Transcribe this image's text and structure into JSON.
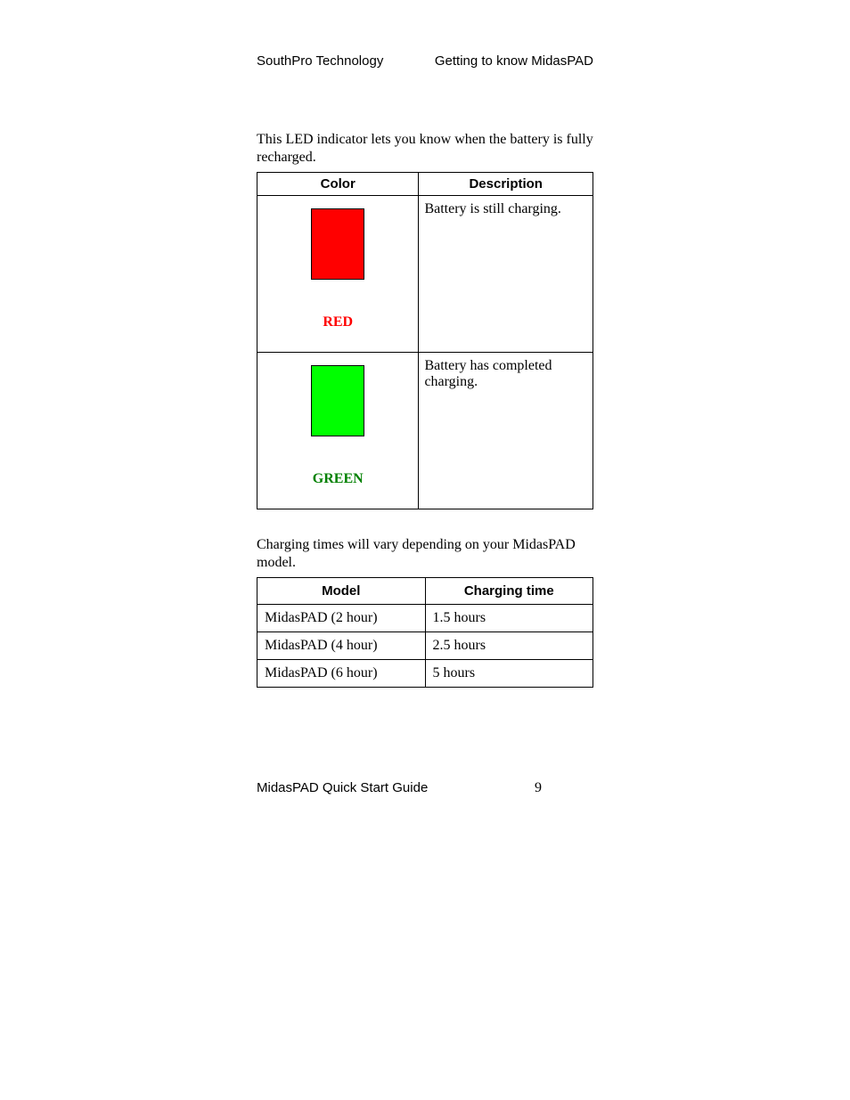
{
  "header": {
    "left": "SouthPro Technology",
    "right": "Getting to know MidasPAD"
  },
  "intro1": "This LED indicator lets you know when the battery is fully recharged.",
  "led_table": {
    "headers": {
      "c1": "Color",
      "c2": "Description"
    },
    "rows": [
      {
        "swatch_color": "#ff0000",
        "label": "RED",
        "label_color": "#ff0000",
        "desc": "Battery is still charging."
      },
      {
        "swatch_color": "#00ff00",
        "label": "GREEN",
        "label_color": "#008000",
        "desc": "Battery has completed charging."
      }
    ]
  },
  "intro2": "Charging times will vary depending on your MidasPAD model.",
  "model_table": {
    "headers": {
      "c1": "Model",
      "c2": "Charging time"
    },
    "rows": [
      {
        "model": "MidasPAD (2 hour)",
        "time": "1.5 hours"
      },
      {
        "model": "MidasPAD (4 hour)",
        "time": "2.5 hours"
      },
      {
        "model": "MidasPAD (6 hour)",
        "time": "5 hours"
      }
    ]
  },
  "footer": {
    "title": "MidasPAD Quick Start Guide",
    "page": "9"
  }
}
